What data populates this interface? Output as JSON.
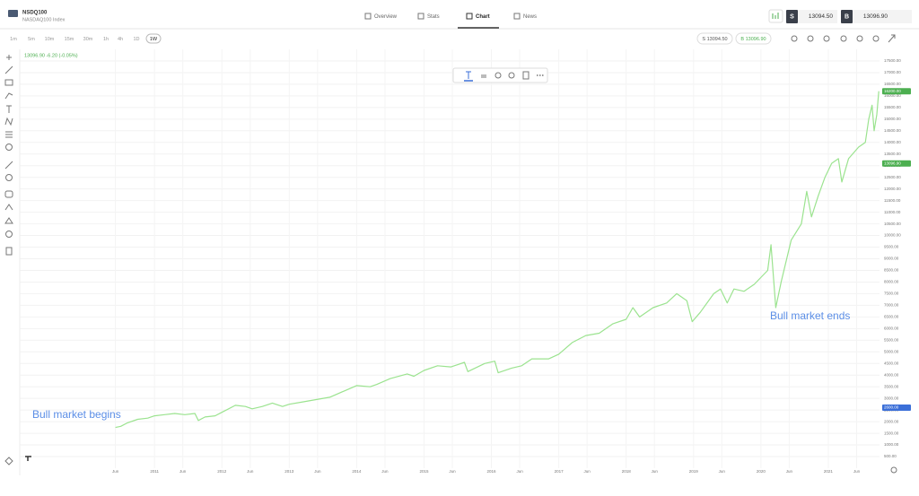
{
  "header": {
    "symbol": "NSDQ100",
    "name": "NASDAQ100 Index",
    "tabs": [
      "Overview",
      "Stats",
      "Chart",
      "News"
    ],
    "active_tab": 2,
    "sell_label": "S",
    "sell_price": "13094.50",
    "buy_label": "B",
    "buy_price": "13096.90"
  },
  "toolbar": {
    "timeframes": [
      "1m",
      "5m",
      "10m",
      "15m",
      "30m",
      "1h",
      "4h",
      "1D",
      "1W"
    ],
    "active_timeframe": 8,
    "sell_pill": "S 13094.50",
    "buy_pill": "B 13096.90"
  },
  "chart_data": {
    "type": "line",
    "info": "13096.90 -6.20 (-0.05%)",
    "color": "#9be38f",
    "grid": true,
    "annotations": [
      "Bull market begins",
      "Bull market ends"
    ],
    "x": [
      2010.42,
      2010.5,
      2010.6,
      2010.75,
      2010.9,
      2011.0,
      2011.15,
      2011.3,
      2011.45,
      2011.6,
      2011.65,
      2011.75,
      2011.9,
      2012.0,
      2012.2,
      2012.35,
      2012.45,
      2012.6,
      2012.75,
      2012.9,
      2013.0,
      2013.2,
      2013.4,
      2013.6,
      2013.8,
      2014.0,
      2014.2,
      2014.3,
      2014.5,
      2014.75,
      2014.85,
      2015.0,
      2015.2,
      2015.4,
      2015.6,
      2015.65,
      2015.9,
      2016.05,
      2016.1,
      2016.3,
      2016.45,
      2016.6,
      2016.85,
      2017.0,
      2017.2,
      2017.4,
      2017.6,
      2017.8,
      2018.0,
      2018.1,
      2018.2,
      2018.4,
      2018.6,
      2018.75,
      2018.9,
      2018.98,
      2019.1,
      2019.3,
      2019.4,
      2019.5,
      2019.6,
      2019.75,
      2019.9,
      2020.1,
      2020.15,
      2020.22,
      2020.3,
      2020.45,
      2020.6,
      2020.68,
      2020.75,
      2020.85,
      2020.95,
      2021.05,
      2021.15,
      2021.2,
      2021.3,
      2021.45,
      2021.55,
      2021.6,
      2021.65,
      2021.68,
      2021.72,
      2021.75
    ],
    "values": [
      1750,
      1800,
      1950,
      2100,
      2150,
      2250,
      2300,
      2350,
      2300,
      2350,
      2050,
      2200,
      2250,
      2400,
      2700,
      2650,
      2550,
      2650,
      2800,
      2650,
      2750,
      2850,
      2950,
      3050,
      3300,
      3550,
      3500,
      3600,
      3850,
      4050,
      3950,
      4200,
      4400,
      4350,
      4550,
      4150,
      4500,
      4600,
      4100,
      4300,
      4400,
      4700,
      4700,
      4900,
      5400,
      5700,
      5800,
      6200,
      6400,
      6900,
      6500,
      6900,
      7100,
      7500,
      7200,
      6300,
      6700,
      7500,
      7700,
      7100,
      7700,
      7600,
      7900,
      8500,
      9600,
      6900,
      8000,
      9800,
      10500,
      11900,
      10800,
      11700,
      12500,
      13100,
      13300,
      12300,
      13300,
      13800,
      14000,
      15000,
      15600,
      14500,
      15200,
      16200
    ],
    "xlim": [
      2009,
      2021.76
    ],
    "xticks": [
      {
        "value": 2010.42,
        "label": "Jun"
      },
      2011,
      {
        "value": 2011.42,
        "label": "Jun"
      },
      2012,
      {
        "value": 2012.42,
        "label": "Jun"
      },
      2013,
      {
        "value": 2013.42,
        "label": "Jun"
      },
      2014,
      {
        "value": 2014.42,
        "label": "Jun"
      },
      2015,
      {
        "value": 2015.42,
        "label": "Jun"
      },
      2016,
      {
        "value": 2016.42,
        "label": "Jun"
      },
      2017,
      {
        "value": 2017.42,
        "label": "Jun"
      },
      2018,
      {
        "value": 2018.42,
        "label": "Jun"
      },
      2019,
      {
        "value": 2019.42,
        "label": "Jun"
      },
      2020,
      {
        "value": 2020.42,
        "label": "Jun"
      },
      2021,
      {
        "value": 2021.42,
        "label": "Jun"
      }
    ],
    "ylim": [
      0,
      18000
    ],
    "yticks": [
      {
        "value": 500,
        "label": "500.00"
      },
      {
        "value": 1000,
        "label": "1000.00"
      },
      {
        "value": 1500,
        "label": "1500.00"
      },
      {
        "value": 2000,
        "label": "2000.00"
      },
      {
        "value": 2500,
        "label": "2500.00"
      },
      {
        "value": 3000,
        "label": "3000.00"
      },
      {
        "value": 3500,
        "label": "3500.00"
      },
      {
        "value": 4000,
        "label": "4000.00"
      },
      {
        "value": 4500,
        "label": "4500.00"
      },
      {
        "value": 5000,
        "label": "5000.00"
      },
      {
        "value": 5500,
        "label": "5500.00"
      },
      {
        "value": 6000,
        "label": "6000.00"
      },
      {
        "value": 6500,
        "label": "6500.00"
      },
      {
        "value": 7000,
        "label": "7000.00"
      },
      {
        "value": 7500,
        "label": "7500.00"
      },
      {
        "value": 8000,
        "label": "8000.00"
      },
      {
        "value": 8500,
        "label": "8500.00"
      },
      {
        "value": 9000,
        "label": "9000.00"
      },
      {
        "value": 9500,
        "label": "9500.00"
      },
      {
        "value": 10000,
        "label": "10000.00"
      },
      {
        "value": 10500,
        "label": "10500.00"
      },
      {
        "value": 11000,
        "label": "11000.00"
      },
      {
        "value": 11500,
        "label": "11500.00"
      },
      {
        "value": 12000,
        "label": "12000.00"
      },
      {
        "value": 12500,
        "label": "12500.00"
      },
      {
        "value": 13000,
        "label": "13000.00"
      },
      {
        "value": 13500,
        "label": "13500.00"
      },
      {
        "value": 14000,
        "label": "14000.00"
      },
      {
        "value": 14500,
        "label": "14500.00"
      },
      {
        "value": 15000,
        "label": "15000.00"
      },
      {
        "value": 15500,
        "label": "15500.00"
      },
      {
        "value": 16000,
        "label": "16000.00"
      },
      {
        "value": 16500,
        "label": "16500.00"
      },
      {
        "value": 17000,
        "label": "17000.00"
      },
      {
        "value": 17500,
        "label": "17500.00"
      }
    ],
    "price_badges": [
      {
        "value": 16200,
        "label": "16200.00",
        "color": "#4caf50"
      },
      {
        "value": 13096.9,
        "label": "13096.90",
        "color": "#4caf50"
      },
      {
        "value": 2600,
        "label": "2600.00",
        "color": "#3b6fd8"
      }
    ]
  }
}
